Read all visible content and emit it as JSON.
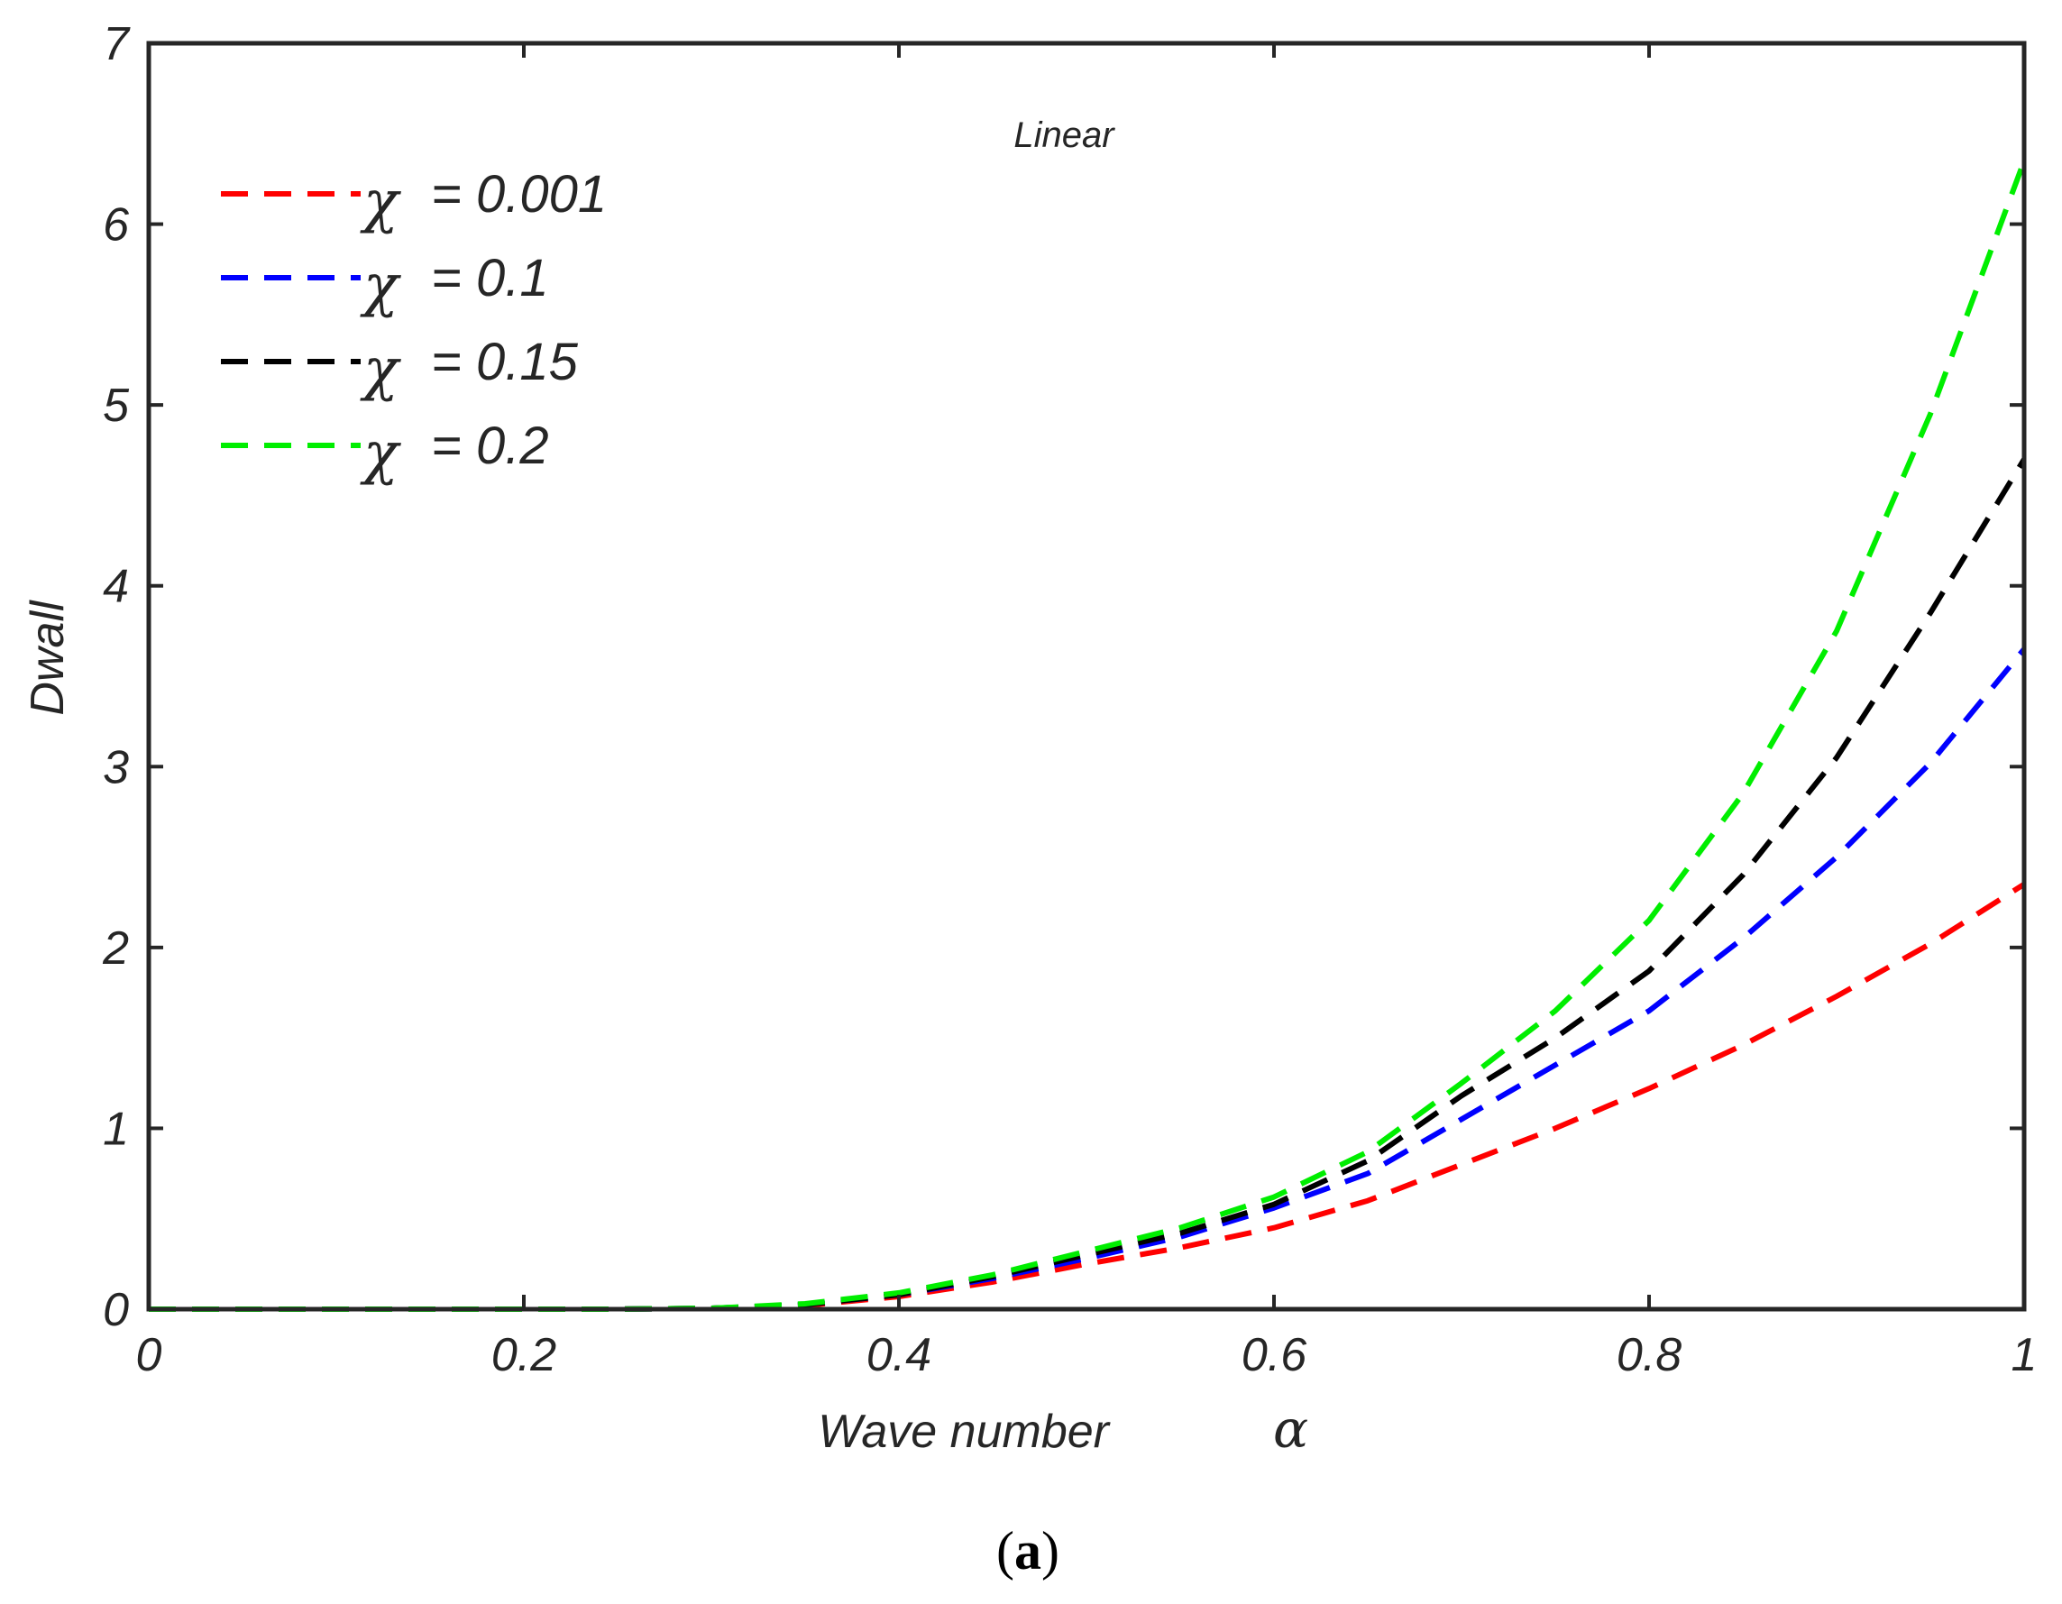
{
  "chart_data": {
    "type": "line",
    "title": "Linear",
    "xlabel": "Wave number",
    "xlabel_symbol": "α",
    "ylabel": "Dwall",
    "xlim": [
      0,
      1
    ],
    "ylim": [
      0,
      7
    ],
    "xticks": [
      0,
      0.2,
      0.4,
      0.6,
      0.8,
      1
    ],
    "xtick_labels": [
      "0",
      "0.2",
      "0.4",
      "0.6",
      "0.8",
      "1"
    ],
    "yticks": [
      0,
      1,
      2,
      3,
      4,
      5,
      6,
      7
    ],
    "ytick_labels": [
      "0",
      "1",
      "2",
      "3",
      "4",
      "5",
      "6",
      "7"
    ],
    "grid": false,
    "legend_position": "top-left",
    "line_style": "dashed",
    "x": [
      0,
      0.05,
      0.1,
      0.15,
      0.2,
      0.25,
      0.3,
      0.35,
      0.4,
      0.45,
      0.5,
      0.55,
      0.6,
      0.65,
      0.7,
      0.75,
      0.8,
      0.85,
      0.9,
      0.95,
      1.0
    ],
    "series": [
      {
        "name": "χ = 0.001",
        "symbol": "χ",
        "value_text": "= 0.001",
        "color": "#ff0000",
        "values": [
          0,
          0,
          0,
          0,
          0,
          0,
          0.005,
          0.02,
          0.07,
          0.15,
          0.25,
          0.34,
          0.45,
          0.6,
          0.8,
          1.0,
          1.22,
          1.46,
          1.73,
          2.02,
          2.35
        ]
      },
      {
        "name": "χ = 0.1",
        "symbol": "χ",
        "value_text": "= 0.1",
        "color": "#0000ff",
        "values": [
          0,
          0,
          0,
          0,
          0,
          0,
          0.005,
          0.025,
          0.08,
          0.17,
          0.28,
          0.4,
          0.56,
          0.75,
          1.05,
          1.35,
          1.65,
          2.05,
          2.5,
          3.02,
          3.65
        ]
      },
      {
        "name": "χ = 0.15",
        "symbol": "χ",
        "value_text": "= 0.15",
        "color": "#000000",
        "values": [
          0,
          0,
          0,
          0,
          0,
          0,
          0.005,
          0.025,
          0.08,
          0.18,
          0.3,
          0.42,
          0.58,
          0.82,
          1.18,
          1.5,
          1.87,
          2.4,
          3.05,
          3.85,
          4.7
        ]
      },
      {
        "name": "χ = 0.2",
        "symbol": "χ",
        "value_text": "= 0.2",
        "color": "#00ee00",
        "values": [
          0,
          0,
          0,
          0,
          0,
          0,
          0.005,
          0.03,
          0.09,
          0.19,
          0.32,
          0.45,
          0.62,
          0.87,
          1.25,
          1.65,
          2.15,
          2.85,
          3.75,
          4.95,
          6.35
        ]
      }
    ]
  },
  "caption": {
    "open": "(",
    "letter": "a",
    "close": ")"
  }
}
